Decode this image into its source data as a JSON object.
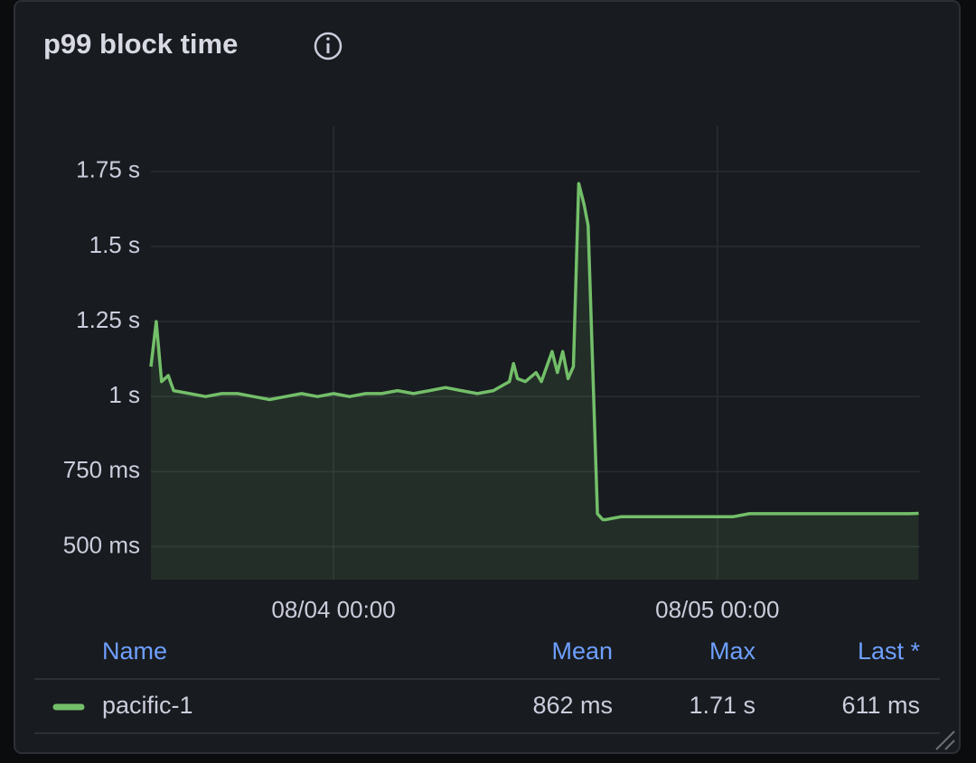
{
  "chart_data": {
    "type": "line",
    "title": "p99 block time",
    "x": [
      "08/03 12:35",
      "08/03 12:55",
      "08/03 13:15",
      "08/03 13:40",
      "08/03 14:00",
      "08/03 15:00",
      "08/03 16:00",
      "08/03 17:00",
      "08/03 18:00",
      "08/03 19:00",
      "08/03 20:00",
      "08/03 21:00",
      "08/03 22:00",
      "08/03 23:00",
      "08/04 00:00",
      "08/04 01:00",
      "08/04 02:00",
      "08/04 03:00",
      "08/04 04:00",
      "08/04 05:00",
      "08/04 06:00",
      "08/04 07:00",
      "08/04 08:00",
      "08/04 09:00",
      "08/04 10:00",
      "08/04 10:40",
      "08/04 11:00",
      "08/04 11:15",
      "08/04 11:30",
      "08/04 12:00",
      "08/04 12:40",
      "08/04 13:00",
      "08/04 13:40",
      "08/04 14:00",
      "08/04 14:20",
      "08/04 14:40",
      "08/04 15:00",
      "08/04 15:20",
      "08/04 15:40",
      "08/04 15:55",
      "08/04 16:30",
      "08/04 16:50",
      "08/04 17:00",
      "08/04 18:00",
      "08/04 19:00",
      "08/04 20:00",
      "08/04 21:00",
      "08/04 22:00",
      "08/04 23:00",
      "08/05 00:00",
      "08/05 01:00",
      "08/05 02:00",
      "08/05 03:00",
      "08/05 04:00",
      "08/05 05:00",
      "08/05 06:00",
      "08/05 07:00",
      "08/05 08:00",
      "08/05 09:00",
      "08/05 10:00",
      "08/05 11:00",
      "08/05 12:00",
      "08/05 12:35"
    ],
    "series": [
      {
        "name": "pacific-1",
        "color": "#73bf69",
        "values": [
          1.1,
          1.25,
          1.05,
          1.07,
          1.02,
          1.01,
          1.0,
          1.01,
          1.01,
          1.0,
          0.99,
          1.0,
          1.01,
          1.0,
          1.01,
          1.0,
          1.01,
          1.01,
          1.02,
          1.01,
          1.02,
          1.03,
          1.02,
          1.01,
          1.02,
          1.04,
          1.05,
          1.11,
          1.06,
          1.05,
          1.08,
          1.05,
          1.15,
          1.08,
          1.15,
          1.06,
          1.1,
          1.71,
          1.64,
          1.57,
          0.61,
          0.59,
          0.59,
          0.6,
          0.6,
          0.6,
          0.6,
          0.6,
          0.6,
          0.6,
          0.6,
          0.61,
          0.61,
          0.61,
          0.61,
          0.61,
          0.61,
          0.61,
          0.61,
          0.61,
          0.61,
          0.61,
          0.611
        ],
        "stats": [
          "862 ms",
          "1.71 s",
          "611 ms"
        ]
      }
    ],
    "legend_columns": [
      "Name",
      "Mean",
      "Max",
      "Last *"
    ],
    "xlim": [
      "08/03 12:35",
      "08/05 12:40"
    ],
    "xticks": [
      "08/04 00:00",
      "08/05 00:00"
    ],
    "ylim": [
      0.39,
      1.9
    ],
    "yticks": [
      {
        "value": 0.5,
        "label": "500 ms"
      },
      {
        "value": 0.75,
        "label": "750 ms"
      },
      {
        "value": 1,
        "label": "1 s"
      },
      {
        "value": 1.25,
        "label": "1.25 s"
      },
      {
        "value": 1.5,
        "label": "1.5 s"
      },
      {
        "value": 1.75,
        "label": "1.75 s"
      }
    ],
    "grid": true
  }
}
